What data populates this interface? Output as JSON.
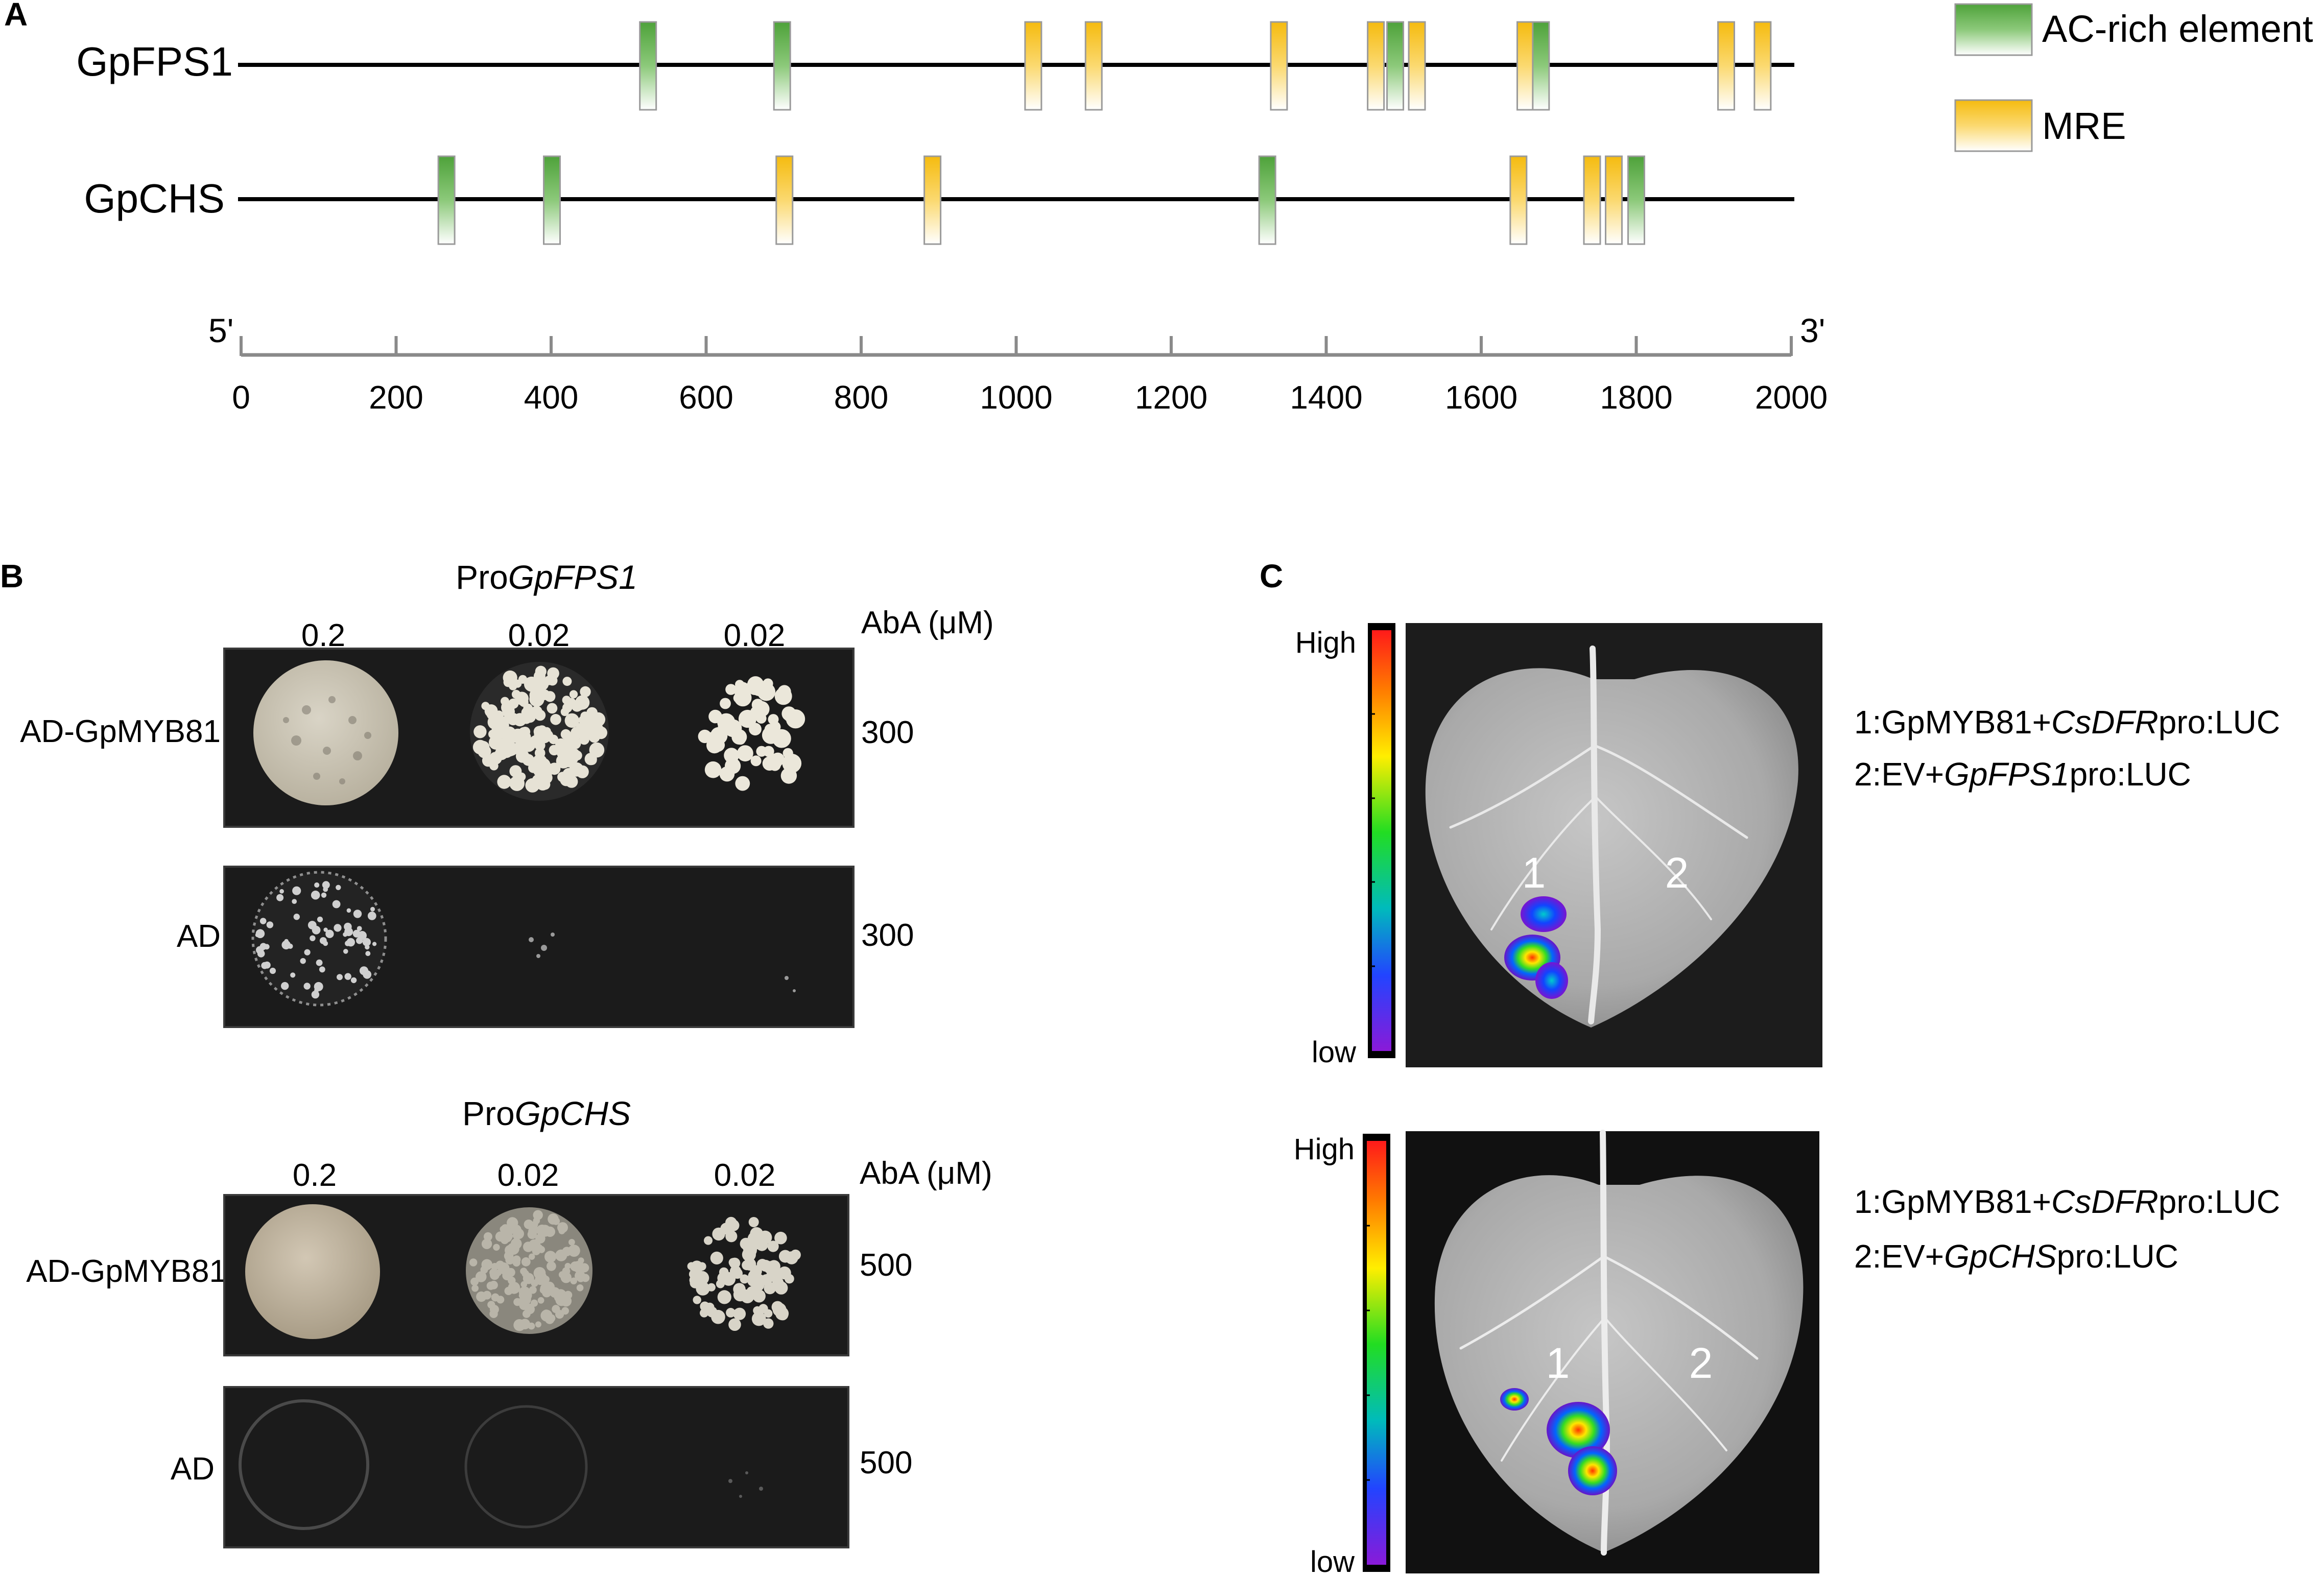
{
  "panels": {
    "a": "A",
    "b": "B",
    "c": "C"
  },
  "panel_a": {
    "genes": [
      "GpFPS1",
      "GpCHS"
    ],
    "legend": {
      "ac_rich": "AC-rich element",
      "mre": "MRE"
    },
    "colors": {
      "ac_rich": "#6ab04c",
      "mre": "#f7c325"
    },
    "axis": {
      "five_prime": "5'",
      "three_prime": "3'",
      "range": [
        0,
        2000
      ],
      "ticks": [
        "0",
        "200",
        "400",
        "600",
        "800",
        "1000",
        "1200",
        "1400",
        "1600",
        "1800",
        "2000"
      ]
    },
    "elements": {
      "GpFPS1": [
        {
          "type": "ac_rich",
          "pos": 525
        },
        {
          "type": "ac_rich",
          "pos": 698
        },
        {
          "type": "mre",
          "pos": 1022
        },
        {
          "type": "mre",
          "pos": 1100
        },
        {
          "type": "mre",
          "pos": 1339
        },
        {
          "type": "mre",
          "pos": 1464
        },
        {
          "type": "ac_rich",
          "pos": 1489
        },
        {
          "type": "mre",
          "pos": 1517
        },
        {
          "type": "mre",
          "pos": 1657
        },
        {
          "type": "ac_rich",
          "pos": 1677
        },
        {
          "type": "mre",
          "pos": 1916
        },
        {
          "type": "mre",
          "pos": 1963
        }
      ],
      "GpCHS": [
        {
          "type": "ac_rich",
          "pos": 265
        },
        {
          "type": "ac_rich",
          "pos": 401
        },
        {
          "type": "mre",
          "pos": 701
        },
        {
          "type": "mre",
          "pos": 892
        },
        {
          "type": "ac_rich",
          "pos": 1324
        },
        {
          "type": "mre",
          "pos": 1648
        },
        {
          "type": "mre",
          "pos": 1743
        },
        {
          "type": "mre",
          "pos": 1771
        },
        {
          "type": "ac_rich",
          "pos": 1800
        }
      ]
    }
  },
  "panel_b": {
    "aba_label": "AbA (μM)",
    "blocks": [
      {
        "title_prefix": "Pro",
        "title_gene": "GpFPS1",
        "dilutions": [
          "0.2",
          "0.02",
          "0.02"
        ],
        "rows": [
          {
            "label": "AD-GpMYB81",
            "aba": "300"
          },
          {
            "label": "AD",
            "aba": "300"
          }
        ]
      },
      {
        "title_prefix": "Pro",
        "title_gene": "GpCHS",
        "dilutions": [
          "0.2",
          "0.02",
          "0.02"
        ],
        "rows": [
          {
            "label": "AD-GpMYB81",
            "aba": "500"
          },
          {
            "label": "AD",
            "aba": "500"
          }
        ]
      }
    ]
  },
  "panel_c": {
    "scale_high": "High",
    "scale_low": "low",
    "images": [
      {
        "spot1": "1",
        "spot2": "2",
        "legend1": {
          "pre": "1:GpMYB81+",
          "gene": "CsDFR",
          "post": "pro:LUC"
        },
        "legend2": {
          "pre": "2:EV+",
          "gene": "GpFPS1",
          "post": "pro:LUC"
        }
      },
      {
        "spot1": "1",
        "spot2": "2",
        "legend1": {
          "pre": "1:GpMYB81+",
          "gene": "CsDFR",
          "post": "pro:LUC"
        },
        "legend2": {
          "pre": "2:EV+",
          "gene": "GpCHS",
          "post": "pro:LUC"
        }
      }
    ]
  }
}
